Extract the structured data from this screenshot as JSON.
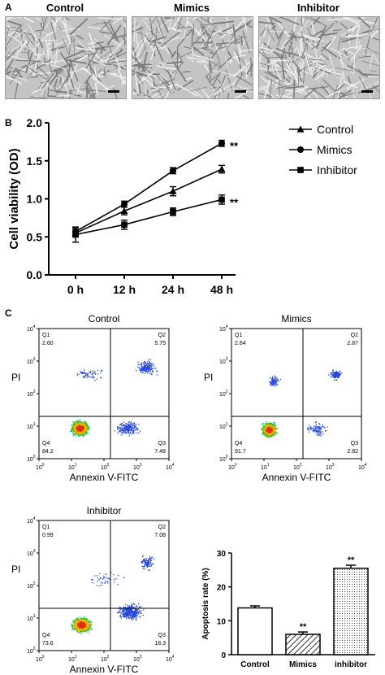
{
  "panels": {
    "a": {
      "letter": "A",
      "images": [
        {
          "title": "Control"
        },
        {
          "title": "Mimics"
        },
        {
          "title": "Inhibitor"
        }
      ]
    },
    "b": {
      "letter": "B"
    },
    "c": {
      "letter": "C"
    }
  },
  "chart_data": [
    {
      "type": "line",
      "ylabel": "Cell viability (OD)",
      "xlabel": "",
      "categories": [
        "0 h",
        "12 h",
        "24 h",
        "48 h"
      ],
      "ylim": [
        0.0,
        2.0
      ],
      "yticks": [
        "0.0",
        "0.5",
        "1.0",
        "1.5",
        "2.0"
      ],
      "legend_position": "right",
      "series": [
        {
          "name": "Control",
          "marker": "triangle",
          "values": [
            0.55,
            0.84,
            1.1,
            1.39
          ],
          "errors": [
            0.05,
            0.05,
            0.06,
            0.05
          ],
          "annotation": ""
        },
        {
          "name": "Mimics",
          "marker": "circle",
          "values": [
            0.57,
            0.93,
            1.37,
            1.73
          ],
          "errors": [
            0.05,
            0.04,
            0.04,
            0.04
          ],
          "annotation": "**"
        },
        {
          "name": "Inhibitor",
          "marker": "square",
          "values": [
            0.53,
            0.66,
            0.83,
            0.99
          ],
          "errors": [
            0.1,
            0.06,
            0.05,
            0.06
          ],
          "annotation": "**"
        }
      ]
    },
    {
      "type": "scatter",
      "title": "Control",
      "xlabel": "Annexin V-FITC",
      "ylabel": "PI",
      "quadrants": [
        {
          "name": "Q1",
          "value": "2.60"
        },
        {
          "name": "Q2",
          "value": "5.75"
        },
        {
          "name": "Q3",
          "value": "7.48"
        },
        {
          "name": "Q4",
          "value": "84.2"
        }
      ]
    },
    {
      "type": "scatter",
      "title": "Mimics",
      "xlabel": "Annexin V-FITC",
      "ylabel": "PI",
      "quadrants": [
        {
          "name": "Q1",
          "value": "2.64"
        },
        {
          "name": "Q2",
          "value": "2.87"
        },
        {
          "name": "Q3",
          "value": "2.82"
        },
        {
          "name": "Q4",
          "value": "91.7"
        }
      ]
    },
    {
      "type": "scatter",
      "title": "Inhibitor",
      "xlabel": "Annexin V-FITC",
      "ylabel": "PI",
      "quadrants": [
        {
          "name": "Q1",
          "value": "0.99"
        },
        {
          "name": "Q2",
          "value": "7.08"
        },
        {
          "name": "Q3",
          "value": "18.3"
        },
        {
          "name": "Q4",
          "value": "73.6"
        }
      ]
    },
    {
      "type": "bar",
      "ylabel": "Apoptosis rate (%)",
      "categories": [
        "Control",
        "Mimics",
        "inhibitor"
      ],
      "values": [
        13.8,
        6.0,
        25.5
      ],
      "errors": [
        0.6,
        0.7,
        0.9
      ],
      "annotations": [
        "",
        "**",
        "**"
      ],
      "fills": [
        "white",
        "hatched",
        "dotted"
      ],
      "ylim": [
        0,
        30
      ],
      "yticks": [
        "0",
        "10",
        "20",
        "30"
      ]
    }
  ]
}
